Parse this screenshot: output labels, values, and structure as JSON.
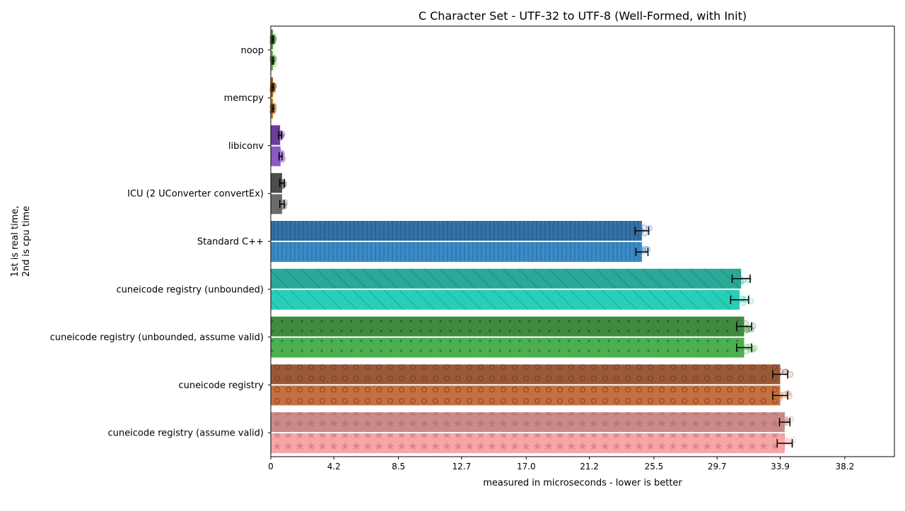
{
  "chart_data": {
    "type": "bar",
    "orientation": "horizontal",
    "title": "C Character Set - UTF-32 to UTF-8 (Well-Formed, with Init)",
    "xlabel": "measured in microseconds - lower is better",
    "ylabel_lines": [
      "1st is real time,",
      "2nd is cpu time"
    ],
    "xlim": [
      0,
      41.5
    ],
    "xticks": [
      0,
      4.2,
      8.5,
      12.7,
      17.0,
      21.2,
      25.5,
      29.7,
      33.9,
      38.2
    ],
    "xtick_labels": [
      "0",
      "4.2",
      "8.5",
      "12.7",
      "17.0",
      "21.2",
      "25.5",
      "29.7",
      "33.9",
      "38.2"
    ],
    "grid": false,
    "categories": [
      "noop",
      "memcpy",
      "libiconv",
      "ICU (2 UConverter convertEx)",
      "Standard C++",
      "cuneicode registry (unbounded)",
      "cuneicode registry (unbounded, assume valid)",
      "cuneicode registry",
      "cuneicode registry (assume valid)"
    ],
    "series": [
      {
        "values": [
          0.15,
          0.15,
          0.62,
          0.75,
          24.7,
          31.3,
          31.5,
          33.9,
          34.2
        ],
        "error": [
          0.05,
          0.05,
          0.1,
          0.15,
          0.45,
          0.6,
          0.5,
          0.5,
          0.35
        ]
      },
      {
        "values": [
          0.15,
          0.15,
          0.65,
          0.75,
          24.7,
          31.2,
          31.5,
          33.9,
          34.2
        ],
        "error": [
          0.05,
          0.05,
          0.1,
          0.15,
          0.4,
          0.6,
          0.5,
          0.5,
          0.5
        ]
      }
    ],
    "colors": {
      "noop": [
        "#4f9a3a",
        "#6bb845"
      ],
      "memcpy": [
        "#a85f10",
        "#c97a1c"
      ],
      "libiconv": [
        "#6a3d9a",
        "#8a5ac2"
      ],
      "ICU (2 UConverter convertEx)": [
        "#4d4d4d",
        "#6b6b6b"
      ],
      "Standard C++": [
        "#3471a8",
        "#3b8cc8"
      ],
      "cuneicode registry (unbounded)": [
        "#2aa898",
        "#27cfb8"
      ],
      "cuneicode registry (unbounded, assume valid)": [
        "#3f8a3f",
        "#4caf50"
      ],
      "cuneicode registry": [
        "#9a5a3a",
        "#c5703f"
      ],
      "cuneicode registry (assume valid)": [
        "#c98a8a",
        "#f7a6a6"
      ]
    },
    "hatches": {
      "Standard C++": "vertical-lines",
      "cuneicode registry (unbounded)": "diagonal",
      "cuneicode registry (unbounded, assume valid)": "dots",
      "cuneicode registry": "circles",
      "cuneicode registry (assume valid)": "stars"
    }
  }
}
